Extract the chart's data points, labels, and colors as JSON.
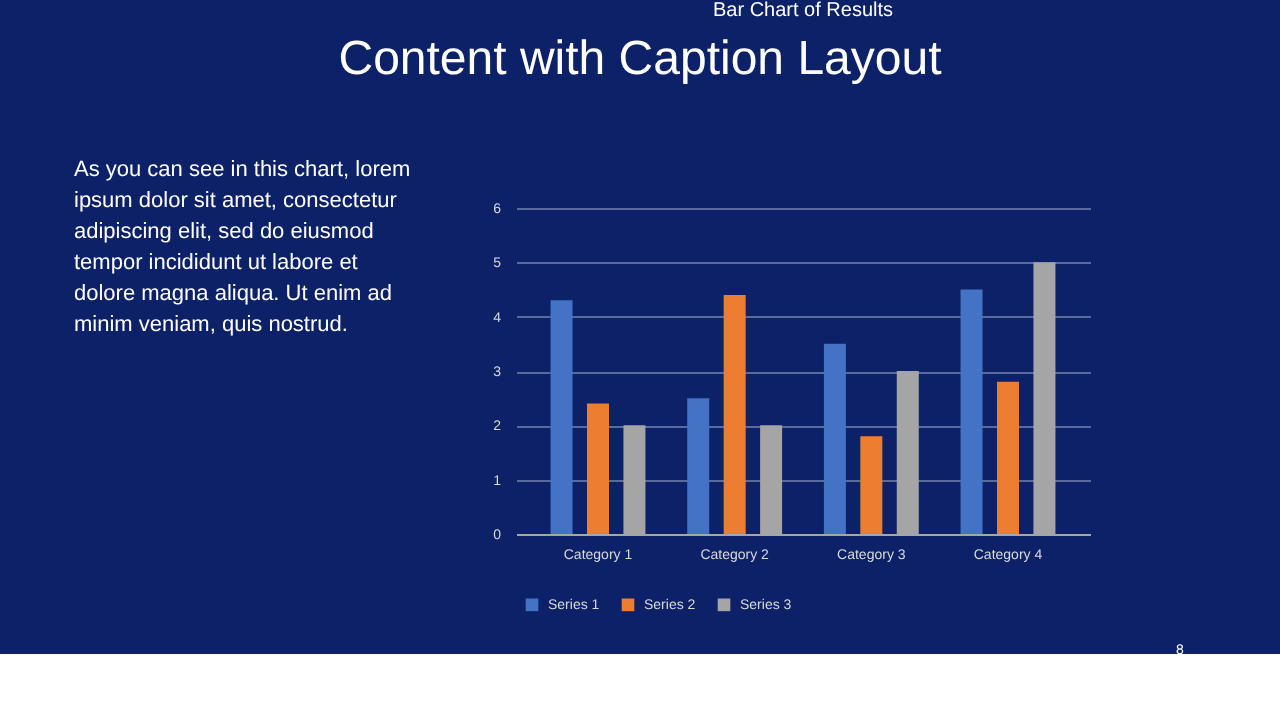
{
  "chart_data": {
    "type": "bar",
    "title": "Bar Chart of Results",
    "categories": [
      "Category 1",
      "Category 2",
      "Category 3",
      "Category 4"
    ],
    "series": [
      {
        "name": "Series 1",
        "color": "#4472c4",
        "values": [
          4.3,
          2.5,
          3.5,
          4.5
        ]
      },
      {
        "name": "Series 2",
        "color": "#ed7d31",
        "values": [
          2.4,
          4.4,
          1.8,
          2.8
        ]
      },
      {
        "name": "Series 3",
        "color": "#a5a5a5",
        "values": [
          2,
          2,
          3,
          5
        ]
      }
    ],
    "ylim": [
      0,
      6
    ],
    "yticks": [
      0,
      1,
      2,
      3,
      4,
      5,
      6
    ],
    "grid": "y",
    "legend": "bottom",
    "annotations": [
      "Content with Caption Layout",
      "As you can see in this chart, lorem\nipsum dolor sit amet, consectetur\nadipiscing elit, sed do eiusmod\ntempor incididunt ut labore et\ndolore magna aliqua. Ut enim ad\nminim veniam, quis nostrud.",
      "8"
    ]
  }
}
